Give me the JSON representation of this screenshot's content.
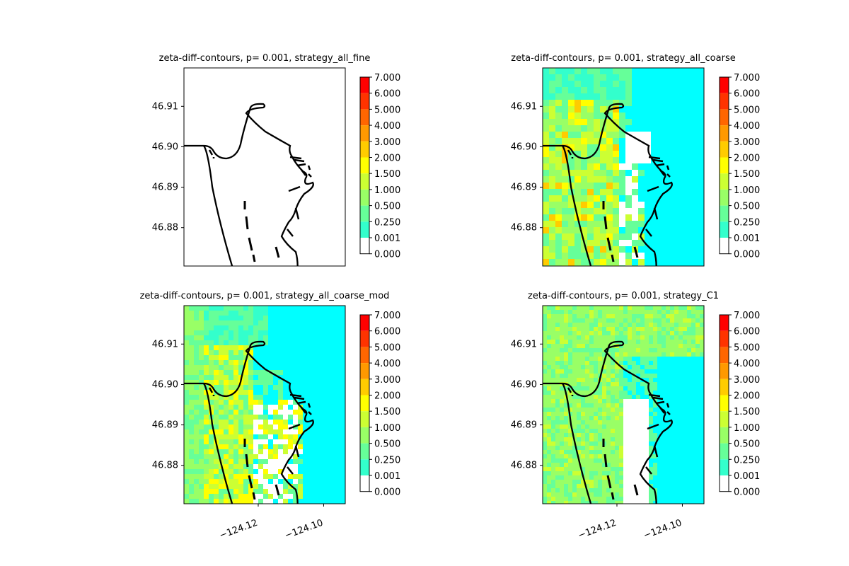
{
  "figure": {
    "colorbar_levels": [
      "7.000",
      "6.000",
      "5.000",
      "4.000",
      "3.000",
      "2.000",
      "1.500",
      "1.000",
      "0.500",
      "0.250",
      "0.001",
      "0.000"
    ],
    "colorbar_colors": [
      "#ff0000",
      "#ff3300",
      "#ff6600",
      "#ff9900",
      "#ffcc00",
      "#ffff00",
      "#ccff33",
      "#99ff66",
      "#66ff99",
      "#33ffcc",
      "#00ffff",
      "#ffffff"
    ],
    "y_ticks": [
      "46.91",
      "46.90",
      "46.89",
      "46.88"
    ],
    "x_ticks": [
      "−124.12",
      "−124.10"
    ],
    "coastline_color": "#000000"
  },
  "chart_data": [
    {
      "type": "heatmap",
      "title": "zeta-diff-contours, p= 0.001, strategy_all_fine",
      "yticks": [
        46.91,
        46.9,
        46.89,
        46.88
      ],
      "xticks": [],
      "background": "#ffffff",
      "dominant_level": "0.000 (no difference)"
    },
    {
      "type": "heatmap",
      "title": "zeta-diff-contours, p= 0.001, strategy_all_coarse",
      "yticks": [
        46.91,
        46.9,
        46.89,
        46.88
      ],
      "xticks": [],
      "background": "#00ffff",
      "dominant_level": "0.001-0.250"
    },
    {
      "type": "heatmap",
      "title": "zeta-diff-contours, p= 0.001, strategy_all_coarse_mod",
      "yticks": [
        46.91,
        46.9,
        46.89,
        46.88
      ],
      "xticks": [
        -124.12,
        -124.1
      ],
      "background": "#00ffff",
      "dominant_level": "0.001-0.250"
    },
    {
      "type": "heatmap",
      "title": "zeta-diff-contours, p= 0.001, strategy_C1",
      "yticks": [
        46.91,
        46.9,
        46.89,
        46.88
      ],
      "xticks": [
        -124.12,
        -124.1
      ],
      "background": "#00ffff",
      "dominant_level": "0.500-1.000"
    }
  ]
}
